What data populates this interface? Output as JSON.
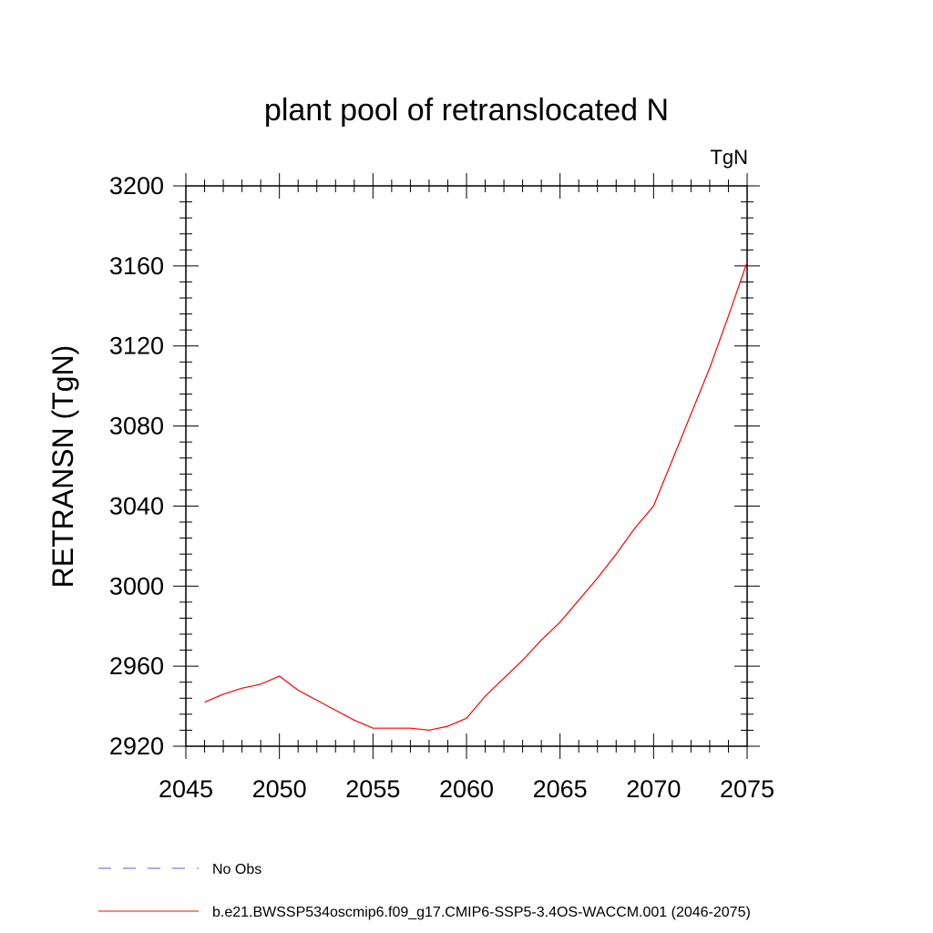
{
  "chart_data": {
    "type": "line",
    "title": "plant pool of retranslocated N",
    "units_label": "TgN",
    "ylabel": "RETRANSN  (TgN)",
    "xlabel": "",
    "xlim": [
      2045,
      2075
    ],
    "ylim": [
      2920,
      3200
    ],
    "x_ticks": [
      2045,
      2050,
      2055,
      2060,
      2065,
      2070,
      2075
    ],
    "y_ticks": [
      2920,
      2960,
      3000,
      3040,
      3080,
      3120,
      3160,
      3200
    ],
    "grid": false,
    "legend_position": "bottom-left",
    "series": [
      {
        "name": "b.e21.BWSSP534oscmip6.f09_g17.CMIP6-SSP5-3.4OS-WACCM.001 (2046-2075)",
        "color": "#ff0000",
        "style": "solid",
        "x": [
          2046,
          2047,
          2048,
          2049,
          2050,
          2051,
          2052,
          2053,
          2054,
          2055,
          2056,
          2057,
          2058,
          2059,
          2060,
          2061,
          2062,
          2063,
          2064,
          2065,
          2066,
          2067,
          2068,
          2069,
          2070,
          2071,
          2072,
          2073,
          2074,
          2075
        ],
        "y": [
          2942,
          2946,
          2949,
          2951,
          2955,
          2948,
          2943,
          2938,
          2933,
          2929,
          2929,
          2929,
          2928,
          2930,
          2934,
          2945,
          2954,
          2963,
          2973,
          2982,
          2993,
          3004,
          3016,
          3029,
          3040,
          3063,
          3086,
          3109,
          3135,
          3162
        ]
      }
    ],
    "legend": [
      {
        "label": "No Obs",
        "color": "#6a5acd",
        "style": "dashed"
      },
      {
        "label": "b.e21.BWSSP534oscmip6.f09_g17.CMIP6-SSP5-3.4OS-WACCM.001 (2046-2075)",
        "color": "#ff0000",
        "style": "solid"
      }
    ]
  }
}
